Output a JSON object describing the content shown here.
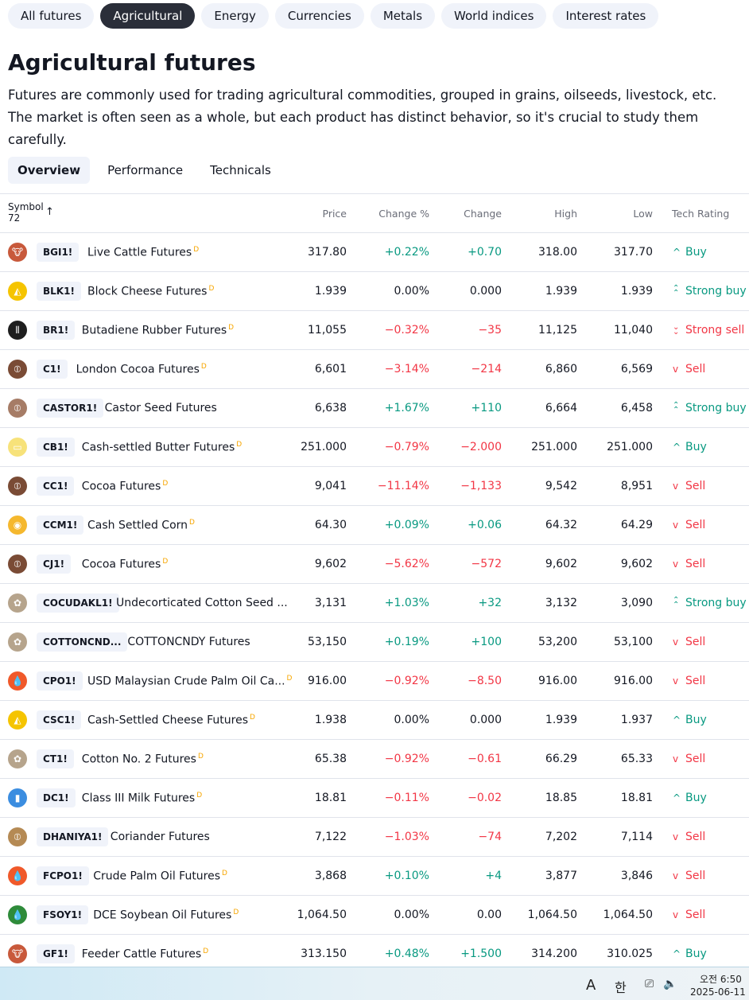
{
  "categories": [
    "All futures",
    "Agricultural",
    "Energy",
    "Currencies",
    "Metals",
    "World indices",
    "Interest rates"
  ],
  "active_category": 1,
  "page_title": "Agricultural futures",
  "description": "Futures are commonly used for trading agricultural commodities, grouped in grains, oilseeds, livestock, etc. The market is often seen as a whole, but each product has distinct behavior, so it's crucial to study them carefully.",
  "tabs": [
    "Overview",
    "Performance",
    "Technicals"
  ],
  "active_tab": 0,
  "table": {
    "symbol_header": "Symbol",
    "symbol_count": "72",
    "headers": {
      "price": "Price",
      "change_pct": "Change %",
      "change": "Change",
      "high": "High",
      "low": "Low",
      "rating": "Tech Rating"
    },
    "rows": [
      {
        "ticker": "BGI1!",
        "name": "Live Cattle Futures",
        "d": "D",
        "price": "317.80",
        "change_pct": "+0.22%",
        "change": "+0.70",
        "high": "318.00",
        "low": "317.70",
        "rating": "Buy",
        "dir": "pos",
        "rating_cls": "pos",
        "icon": "cattle-icon",
        "icon_color": "#c8593b",
        "icon_glyph": "🐮"
      },
      {
        "ticker": "BLK1!",
        "name": "Block Cheese Futures",
        "d": "D",
        "price": "1.939",
        "change_pct": "0.00%",
        "change": "0.000",
        "high": "1.939",
        "low": "1.939",
        "rating": "Strong buy",
        "dir": "neu",
        "rating_cls": "pos",
        "icon": "cheese-icon",
        "icon_color": "#f5c400",
        "icon_glyph": "◭"
      },
      {
        "ticker": "BR1!",
        "name": "Butadiene Rubber Futures",
        "d": "D",
        "price": "11,055",
        "change_pct": "−0.32%",
        "change": "−35",
        "high": "11,125",
        "low": "11,040",
        "rating": "Strong sell",
        "dir": "neg",
        "rating_cls": "neg",
        "icon": "rubber-icon",
        "icon_color": "#1e1e1e",
        "icon_glyph": "⦀"
      },
      {
        "ticker": "C1!",
        "name": "London Cocoa Futures",
        "d": "D",
        "price": "6,601",
        "change_pct": "−3.14%",
        "change": "−214",
        "high": "6,860",
        "low": "6,569",
        "rating": "Sell",
        "dir": "neg",
        "rating_cls": "neg",
        "icon": "cocoa-icon",
        "icon_color": "#7a4b35",
        "icon_glyph": "⦶"
      },
      {
        "ticker": "CASTOR1!",
        "name": "Castor Seed Futures",
        "d": "",
        "price": "6,638",
        "change_pct": "+1.67%",
        "change": "+110",
        "high": "6,664",
        "low": "6,458",
        "rating": "Strong buy",
        "dir": "pos",
        "rating_cls": "pos",
        "icon": "seed-icon",
        "icon_color": "#a67c66",
        "icon_glyph": "⦶"
      },
      {
        "ticker": "CB1!",
        "name": "Cash-settled Butter Futures",
        "d": "D",
        "price": "251.000",
        "change_pct": "−0.79%",
        "change": "−2.000",
        "high": "251.000",
        "low": "251.000",
        "rating": "Buy",
        "dir": "neg",
        "rating_cls": "pos",
        "icon": "butter-icon",
        "icon_color": "#f7e27a",
        "icon_glyph": "▭"
      },
      {
        "ticker": "CC1!",
        "name": "Cocoa Futures",
        "d": "D",
        "price": "9,041",
        "change_pct": "−11.14%",
        "change": "−1,133",
        "high": "9,542",
        "low": "8,951",
        "rating": "Sell",
        "dir": "neg",
        "rating_cls": "neg",
        "icon": "cocoa-icon",
        "icon_color": "#7a4b35",
        "icon_glyph": "⦶"
      },
      {
        "ticker": "CCM1!",
        "name": "Cash Settled Corn",
        "d": "D",
        "price": "64.30",
        "change_pct": "+0.09%",
        "change": "+0.06",
        "high": "64.32",
        "low": "64.29",
        "rating": "Sell",
        "dir": "pos",
        "rating_cls": "neg",
        "icon": "corn-icon",
        "icon_color": "#f5b82e",
        "icon_glyph": "◉"
      },
      {
        "ticker": "CJ1!",
        "name": "Cocoa Futures",
        "d": "D",
        "price": "9,602",
        "change_pct": "−5.62%",
        "change": "−572",
        "high": "9,602",
        "low": "9,602",
        "rating": "Sell",
        "dir": "neg",
        "rating_cls": "neg",
        "icon": "cocoa-icon",
        "icon_color": "#7a4b35",
        "icon_glyph": "⦶"
      },
      {
        "ticker": "COCUDAKL1!",
        "name": "Undecorticated Cotton Seed ...",
        "d": "",
        "price": "3,131",
        "change_pct": "+1.03%",
        "change": "+32",
        "high": "3,132",
        "low": "3,090",
        "rating": "Strong buy",
        "dir": "pos",
        "rating_cls": "pos",
        "icon": "cotton-icon",
        "icon_color": "#b6a48c",
        "icon_glyph": "✿"
      },
      {
        "ticker": "COTTONCND...",
        "name": "COTTONCNDY Futures",
        "d": "",
        "price": "53,150",
        "change_pct": "+0.19%",
        "change": "+100",
        "high": "53,200",
        "low": "53,100",
        "rating": "Sell",
        "dir": "pos",
        "rating_cls": "neg",
        "icon": "cotton-icon",
        "icon_color": "#b6a48c",
        "icon_glyph": "✿"
      },
      {
        "ticker": "CPO1!",
        "name": "USD Malaysian Crude Palm Oil Ca...",
        "d": "D",
        "price": "916.00",
        "change_pct": "−0.92%",
        "change": "−8.50",
        "high": "916.00",
        "low": "916.00",
        "rating": "Sell",
        "dir": "neg",
        "rating_cls": "neg",
        "icon": "oil-drop-icon",
        "icon_color": "#f0592a",
        "icon_glyph": "💧"
      },
      {
        "ticker": "CSC1!",
        "name": "Cash-Settled Cheese Futures",
        "d": "D",
        "price": "1.938",
        "change_pct": "0.00%",
        "change": "0.000",
        "high": "1.939",
        "low": "1.937",
        "rating": "Buy",
        "dir": "neu",
        "rating_cls": "pos",
        "icon": "cheese-icon",
        "icon_color": "#f5c400",
        "icon_glyph": "◭"
      },
      {
        "ticker": "CT1!",
        "name": "Cotton No. 2 Futures",
        "d": "D",
        "price": "65.38",
        "change_pct": "−0.92%",
        "change": "−0.61",
        "high": "66.29",
        "low": "65.33",
        "rating": "Sell",
        "dir": "neg",
        "rating_cls": "neg",
        "icon": "cotton-icon",
        "icon_color": "#b6a48c",
        "icon_glyph": "✿"
      },
      {
        "ticker": "DC1!",
        "name": "Class III Milk Futures",
        "d": "D",
        "price": "18.81",
        "change_pct": "−0.11%",
        "change": "−0.02",
        "high": "18.85",
        "low": "18.81",
        "rating": "Buy",
        "dir": "neg",
        "rating_cls": "pos",
        "icon": "milk-icon",
        "icon_color": "#3b8de0",
        "icon_glyph": "▮"
      },
      {
        "ticker": "DHANIYA1!",
        "name": "Coriander Futures",
        "d": "",
        "price": "7,122",
        "change_pct": "−1.03%",
        "change": "−74",
        "high": "7,202",
        "low": "7,114",
        "rating": "Sell",
        "dir": "neg",
        "rating_cls": "neg",
        "icon": "seed-icon",
        "icon_color": "#b58a54",
        "icon_glyph": "⦶"
      },
      {
        "ticker": "FCPO1!",
        "name": "Crude Palm Oil Futures",
        "d": "D",
        "price": "3,868",
        "change_pct": "+0.10%",
        "change": "+4",
        "high": "3,877",
        "low": "3,846",
        "rating": "Sell",
        "dir": "pos",
        "rating_cls": "neg",
        "icon": "oil-drop-icon",
        "icon_color": "#f0592a",
        "icon_glyph": "💧"
      },
      {
        "ticker": "FSOY1!",
        "name": "DCE Soybean Oil Futures",
        "d": "D",
        "price": "1,064.50",
        "change_pct": "0.00%",
        "change": "0.00",
        "high": "1,064.50",
        "low": "1,064.50",
        "rating": "Sell",
        "dir": "neu",
        "rating_cls": "neg",
        "icon": "soy-oil-drop-icon",
        "icon_color": "#2e8b3a",
        "icon_glyph": "💧"
      },
      {
        "ticker": "GF1!",
        "name": "Feeder Cattle Futures",
        "d": "D",
        "price": "313.150",
        "change_pct": "+0.48%",
        "change": "+1.500",
        "high": "314.200",
        "low": "310.025",
        "rating": "Buy",
        "dir": "pos",
        "rating_cls": "pos",
        "icon": "cattle-icon",
        "icon_color": "#c8593b",
        "icon_glyph": "🐮"
      }
    ]
  },
  "taskbar": {
    "ime_mode": "A",
    "ime_lang": "한",
    "time": "오전 6:50",
    "date": "2025-06-11"
  }
}
